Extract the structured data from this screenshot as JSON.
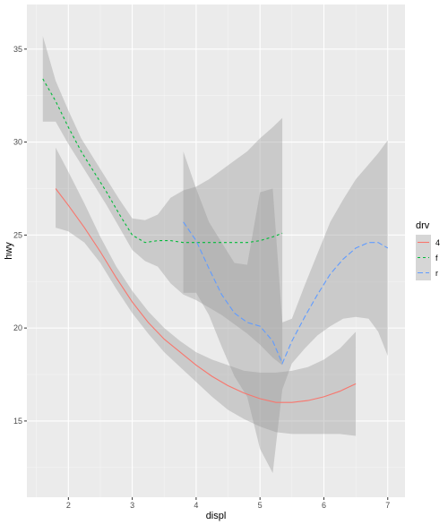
{
  "chart_data": {
    "type": "line",
    "xlabel": "displ",
    "ylabel": "hwy",
    "xlim": [
      1.35,
      7.27
    ],
    "ylim": [
      10.9,
      37.4
    ],
    "x_ticks": [
      2,
      3,
      4,
      5,
      6,
      7
    ],
    "y_ticks": [
      15,
      20,
      25,
      30,
      35
    ],
    "x_tick_labels": [
      "2",
      "3",
      "4",
      "5",
      "6",
      "7"
    ],
    "y_tick_labels": [
      "15",
      "20",
      "25",
      "30",
      "35"
    ],
    "grid": true,
    "legend": {
      "title": "drv",
      "position": "right",
      "entries": [
        "4",
        "f",
        "r"
      ]
    },
    "series": [
      {
        "name": "4",
        "color": "#F8766D",
        "dash": "solid",
        "x": [
          1.8,
          2.0,
          2.25,
          2.5,
          2.75,
          3.0,
          3.25,
          3.5,
          3.75,
          4.0,
          4.25,
          4.5,
          4.75,
          5.0,
          5.25,
          5.5,
          5.75,
          6.0,
          6.25,
          6.5
        ],
        "y": [
          27.5,
          26.6,
          25.4,
          24.1,
          22.7,
          21.4,
          20.3,
          19.4,
          18.7,
          18.0,
          17.4,
          16.9,
          16.5,
          16.2,
          16.0,
          16.0,
          16.1,
          16.3,
          16.6,
          17.0
        ],
        "lower": [
          25.4,
          25.2,
          24.6,
          23.5,
          22.1,
          20.8,
          19.7,
          18.7,
          17.9,
          17.1,
          16.3,
          15.6,
          15.1,
          14.7,
          14.4,
          14.3,
          14.3,
          14.3,
          14.3,
          14.2
        ],
        "upper": [
          29.7,
          28.4,
          26.7,
          24.9,
          23.3,
          22.0,
          20.9,
          20.0,
          19.3,
          18.7,
          18.3,
          18.0,
          17.7,
          17.6,
          17.6,
          17.7,
          17.9,
          18.3,
          18.9,
          19.8
        ]
      },
      {
        "name": "f",
        "color": "#00BA38",
        "dash": "3,3",
        "x": [
          1.6,
          1.8,
          2.0,
          2.2,
          2.4,
          2.6,
          2.8,
          3.0,
          3.2,
          3.4,
          3.6,
          3.8,
          4.0,
          4.2,
          4.4,
          4.6,
          4.8,
          5.0,
          5.2,
          5.35
        ],
        "y": [
          33.4,
          32.2,
          30.8,
          29.5,
          28.4,
          27.3,
          26.1,
          25.0,
          24.6,
          24.7,
          24.7,
          24.6,
          24.6,
          24.6,
          24.6,
          24.6,
          24.6,
          24.7,
          24.9,
          25.1
        ],
        "lower": [
          31.1,
          31.1,
          29.9,
          28.8,
          27.7,
          26.6,
          25.4,
          24.2,
          23.6,
          23.3,
          22.4,
          21.8,
          21.5,
          21.1,
          20.7,
          20.2,
          19.7,
          19.1,
          18.4,
          18.0
        ],
        "upper": [
          35.7,
          33.3,
          31.7,
          30.2,
          29.1,
          28.0,
          26.9,
          25.9,
          25.8,
          26.1,
          27.0,
          27.4,
          27.6,
          28.0,
          28.5,
          29.0,
          29.5,
          30.2,
          30.8,
          31.3
        ]
      },
      {
        "name": "r",
        "color": "#619CFF",
        "dash": "6,3",
        "x": [
          3.8,
          4.0,
          4.2,
          4.4,
          4.6,
          4.8,
          5.0,
          5.2,
          5.35,
          5.5,
          5.7,
          5.9,
          6.1,
          6.3,
          6.5,
          6.7,
          6.85,
          7.0
        ],
        "y": [
          25.7,
          24.7,
          23.2,
          21.8,
          20.8,
          20.3,
          20.1,
          19.3,
          18.1,
          19.3,
          20.6,
          21.8,
          22.9,
          23.7,
          24.3,
          24.6,
          24.6,
          24.3
        ],
        "lower": [
          21.9,
          21.9,
          20.7,
          19.0,
          17.4,
          16.3,
          13.5,
          12.2,
          16.7,
          18.1,
          18.9,
          19.6,
          20.1,
          20.5,
          20.6,
          20.5,
          19.8,
          18.5
        ],
        "upper": [
          29.5,
          27.5,
          25.7,
          24.6,
          23.5,
          23.4,
          27.3,
          27.5,
          20.3,
          20.5,
          22.3,
          24.0,
          25.7,
          26.9,
          28.0,
          28.8,
          29.4,
          30.1
        ]
      }
    ]
  }
}
